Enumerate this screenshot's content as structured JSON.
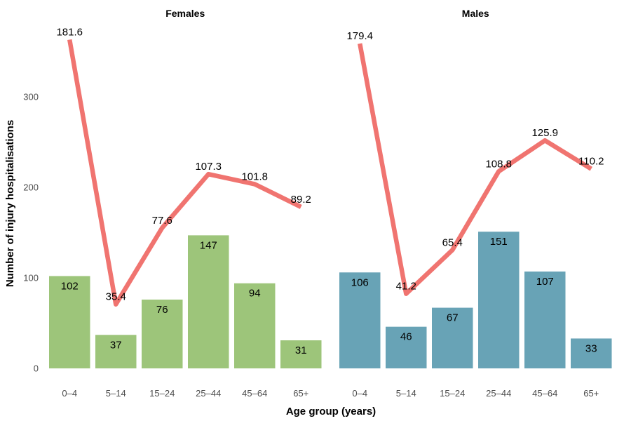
{
  "chart_data": {
    "type": "bar",
    "xlabel": "Age group (years)",
    "ylabel": "Number of injury hospitalisations",
    "ylim": [
      0,
      375
    ],
    "yticks": [
      0,
      100,
      200,
      300
    ],
    "categories": [
      "0–4",
      "5–14",
      "15–24",
      "25–44",
      "45–64",
      "65+"
    ],
    "line_color": "#f07470",
    "panels": [
      {
        "title": "Females",
        "bar_color": "#9dc57a",
        "bar_values": [
          102,
          37,
          76,
          147,
          94,
          31
        ],
        "line_values": [
          181.6,
          35.4,
          77.6,
          107.3,
          101.8,
          89.2
        ],
        "line_labels": [
          "181.6",
          "35.4",
          "77.6",
          "107.3",
          "101.8",
          "89.2"
        ]
      },
      {
        "title": "Males",
        "bar_color": "#68a3b6",
        "bar_values": [
          106,
          46,
          67,
          151,
          107,
          33
        ],
        "line_values": [
          179.4,
          41.2,
          65.4,
          108.8,
          125.9,
          110.2
        ],
        "line_labels": [
          "179.4",
          "41.2",
          "65.4",
          "108.8",
          "125.9",
          "110.2"
        ]
      }
    ]
  }
}
